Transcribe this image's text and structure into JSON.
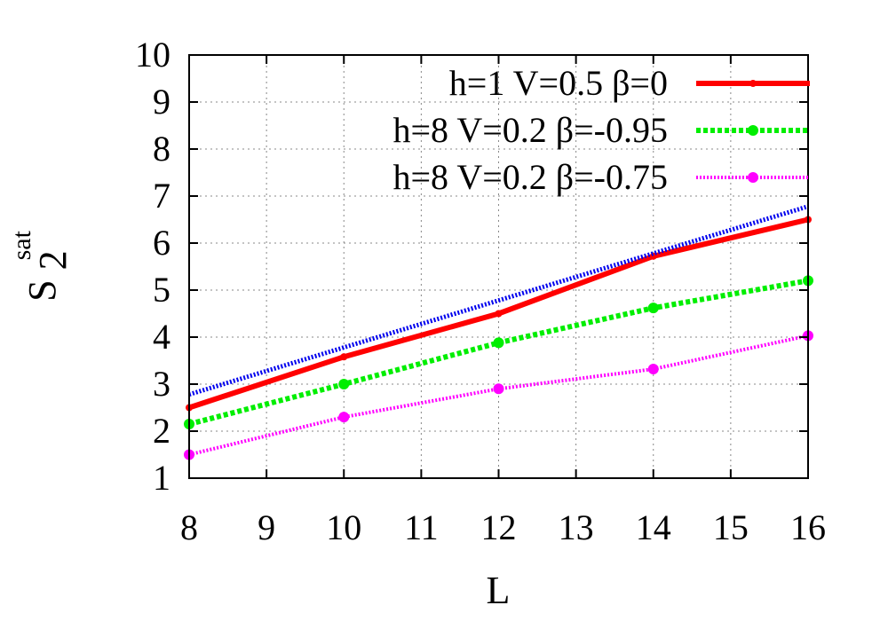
{
  "chart_data": {
    "type": "line",
    "xlabel": "L",
    "ylabel": {
      "base": "S",
      "sub": "2",
      "sup": "sat"
    },
    "xlim": [
      8,
      16
    ],
    "ylim": [
      1,
      10
    ],
    "xticks": [
      8,
      9,
      10,
      11,
      12,
      13,
      14,
      15,
      16
    ],
    "yticks": [
      1,
      2,
      3,
      4,
      5,
      6,
      7,
      8,
      9,
      10
    ],
    "grid": true,
    "legend_position": "top-right",
    "series": [
      {
        "name": "h=1 V=0.5 β=0",
        "color": "#ff0000",
        "style": "solid",
        "marker": "dot",
        "x": [
          8,
          10,
          12,
          14,
          16
        ],
        "y": [
          2.5,
          3.58,
          4.5,
          5.72,
          6.5
        ]
      },
      {
        "name": "h=8 V=0.2 β=-0.95",
        "color": "#00ee00",
        "style": "dashed",
        "marker": "dot",
        "x": [
          8,
          10,
          12,
          14,
          16
        ],
        "y": [
          2.15,
          3.0,
          3.88,
          4.62,
          5.2
        ]
      },
      {
        "name": "h=8 V=0.2 β=-0.75",
        "color": "#ff00ff",
        "style": "dotted",
        "marker": "dot",
        "x": [
          8,
          10,
          12,
          14,
          16
        ],
        "y": [
          1.5,
          2.3,
          2.9,
          3.32,
          4.03
        ]
      },
      {
        "name": "",
        "color": "#0000ee",
        "style": "dotted",
        "marker": "none",
        "x": [
          8,
          16
        ],
        "y": [
          2.78,
          6.78
        ]
      }
    ]
  }
}
